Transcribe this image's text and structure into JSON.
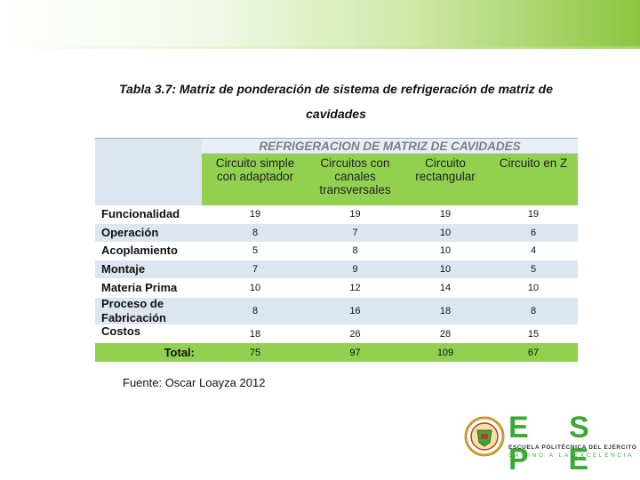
{
  "title": "Tabla 3.7: Matriz de ponderación de sistema de refrigeración de matriz de cavidades",
  "table": {
    "group_header": "REFRIGERACION DE MATRIZ DE CAVIDADES",
    "columns": [
      "Circuito simple con adaptador",
      "Circuitos con canales transversales",
      "Circuito rectangular",
      "Circuito en Z"
    ],
    "rows": [
      [
        "Funcionalidad",
        19,
        19,
        19,
        19
      ],
      [
        "Operación",
        8,
        7,
        10,
        6
      ],
      [
        "Acoplamiento",
        5,
        8,
        10,
        4
      ],
      [
        "Montaje",
        7,
        9,
        10,
        5
      ],
      [
        "Materia Prima",
        10,
        12,
        14,
        10
      ],
      [
        "Proceso de Fabricación",
        8,
        16,
        18,
        8
      ],
      [
        "Costos",
        18,
        26,
        28,
        15
      ]
    ],
    "total": [
      "Total:",
      75,
      97,
      109,
      67
    ]
  },
  "source": "Fuente: Oscar Loayza 2012",
  "logo": {
    "name": "E S P E",
    "line1": "ESCUELA POLITÉCNICA DEL EJÉRCITO",
    "line2": "CAMINO A LA EXCELENCIA"
  }
}
